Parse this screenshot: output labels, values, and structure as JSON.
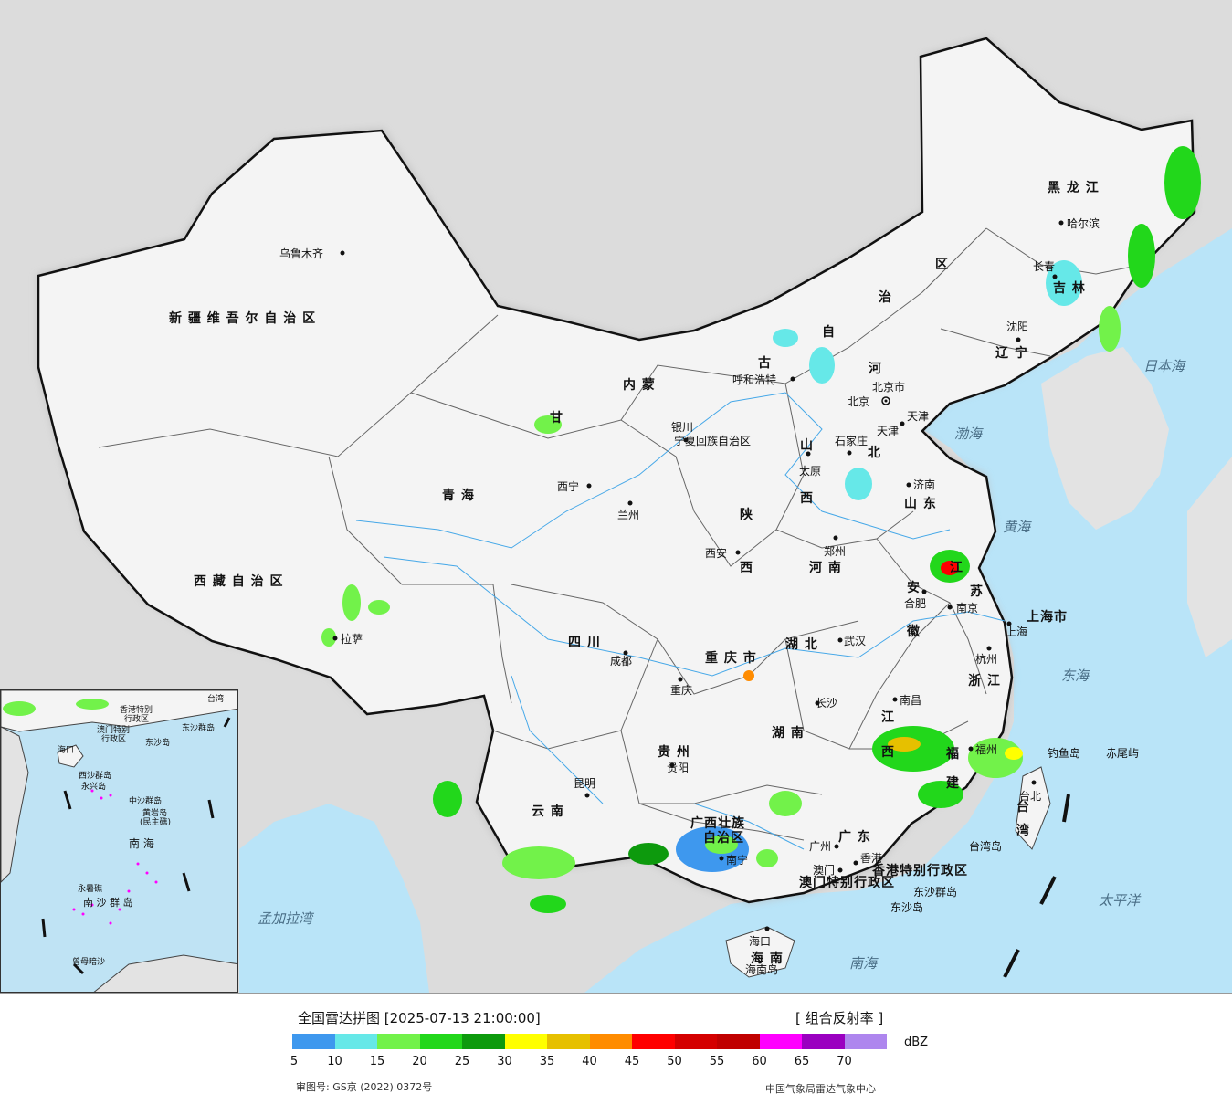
{
  "map": {
    "sea_labels": [
      "日本海",
      "渤海",
      "黄海",
      "东海",
      "太平洋",
      "南海",
      "孟加拉湾"
    ],
    "province_labels": [
      {
        "key": "xinjiang",
        "text": "新 疆 维 吾 尔 自 治 区"
      },
      {
        "key": "xizang",
        "text": "西 藏 自 治 区"
      },
      {
        "key": "qinghai",
        "text": "青           海"
      },
      {
        "key": "gansu",
        "text": "甘"
      },
      {
        "key": "neimenggu1",
        "text": "内       蒙"
      },
      {
        "key": "neimenggu2",
        "text": "古"
      },
      {
        "key": "neimenggu3",
        "text": "自"
      },
      {
        "key": "neimenggu4",
        "text": "治"
      },
      {
        "key": "neimenggu5",
        "text": "区"
      },
      {
        "key": "heilongjiang",
        "text": "黑   龙   江"
      },
      {
        "key": "jilin",
        "text": "吉       林"
      },
      {
        "key": "liaoning",
        "text": "辽   宁"
      },
      {
        "key": "hebei1",
        "text": "河"
      },
      {
        "key": "hebei2",
        "text": "北"
      },
      {
        "key": "shanxi1",
        "text": "山"
      },
      {
        "key": "shanxi2",
        "text": "西"
      },
      {
        "key": "shandong",
        "text": "山   东"
      },
      {
        "key": "henan",
        "text": "河       南"
      },
      {
        "key": "shaanxi1",
        "text": "陕"
      },
      {
        "key": "shaanxi2",
        "text": "西"
      },
      {
        "key": "sichuan",
        "text": "四       川"
      },
      {
        "key": "chongqing",
        "text": "重 庆 市"
      },
      {
        "key": "hubei",
        "text": "湖       北"
      },
      {
        "key": "hunan",
        "text": "湖     南"
      },
      {
        "key": "jiangxi1",
        "text": "江"
      },
      {
        "key": "jiangxi2",
        "text": "西"
      },
      {
        "key": "anhui1",
        "text": "安"
      },
      {
        "key": "anhui2",
        "text": "徽"
      },
      {
        "key": "jiangsu1",
        "text": "江"
      },
      {
        "key": "jiangsu2",
        "text": "苏"
      },
      {
        "key": "zhejiang",
        "text": "浙 江"
      },
      {
        "key": "fujian1",
        "text": "福"
      },
      {
        "key": "fujian2",
        "text": "建"
      },
      {
        "key": "guizhou",
        "text": "贵   州"
      },
      {
        "key": "yunnan",
        "text": "云     南"
      },
      {
        "key": "guangxi1",
        "text": "广西壮族"
      },
      {
        "key": "guangxi2",
        "text": "自治区"
      },
      {
        "key": "guangdong",
        "text": "广   东"
      },
      {
        "key": "hainan",
        "text": "海   南"
      },
      {
        "key": "taiwan1",
        "text": "台"
      },
      {
        "key": "taiwan2",
        "text": "湾"
      },
      {
        "key": "shanghai",
        "text": "上海市"
      },
      {
        "key": "ningxia",
        "text": "宁夏回族自治区"
      },
      {
        "key": "beijing",
        "text": "北京市"
      },
      {
        "key": "tianjin",
        "text": "天津"
      },
      {
        "key": "hk",
        "text": "香港特别行政区"
      },
      {
        "key": "macau",
        "text": "澳门特别行政区"
      }
    ],
    "cities": [
      {
        "key": "urumqi",
        "text": "乌鲁木齐"
      },
      {
        "key": "lhasa",
        "text": "拉萨"
      },
      {
        "key": "xining",
        "text": "西宁"
      },
      {
        "key": "lanzhou",
        "text": "兰州"
      },
      {
        "key": "yinchuan",
        "text": "银川"
      },
      {
        "key": "hohhot",
        "text": "呼和浩特"
      },
      {
        "key": "harbin",
        "text": "哈尔滨"
      },
      {
        "key": "changchun",
        "text": "长春"
      },
      {
        "key": "shenyang",
        "text": "沈阳"
      },
      {
        "key": "beijingc",
        "text": "北京"
      },
      {
        "key": "tianjinc",
        "text": "天津"
      },
      {
        "key": "shijiazhuang",
        "text": "石家庄"
      },
      {
        "key": "taiyuan",
        "text": "太原"
      },
      {
        "key": "jinan",
        "text": "济南"
      },
      {
        "key": "zhengzhou",
        "text": "郑州"
      },
      {
        "key": "xian",
        "text": "西安"
      },
      {
        "key": "chengdu",
        "text": "成都"
      },
      {
        "key": "chongqingc",
        "text": "重庆"
      },
      {
        "key": "wuhan",
        "text": "武汉"
      },
      {
        "key": "hefei",
        "text": "合肥"
      },
      {
        "key": "nanjing",
        "text": "南京"
      },
      {
        "key": "shanghaic",
        "text": "上海"
      },
      {
        "key": "hangzhou",
        "text": "杭州"
      },
      {
        "key": "changsha",
        "text": "长沙"
      },
      {
        "key": "nanchang",
        "text": "南昌"
      },
      {
        "key": "fuzhou",
        "text": "福州"
      },
      {
        "key": "guiyang",
        "text": "贵阳"
      },
      {
        "key": "kunming",
        "text": "昆明"
      },
      {
        "key": "nanning",
        "text": "南宁"
      },
      {
        "key": "guangzhou",
        "text": "广州"
      },
      {
        "key": "xianggang",
        "text": "香港"
      },
      {
        "key": "aomen",
        "text": "澳门"
      },
      {
        "key": "haikou",
        "text": "海口"
      },
      {
        "key": "taibei",
        "text": "台北"
      }
    ],
    "islands": [
      {
        "key": "diaoyu",
        "text": "钓鱼岛"
      },
      {
        "key": "chiwei",
        "text": "赤尾屿"
      },
      {
        "key": "taiwandao",
        "text": "台湾岛"
      },
      {
        "key": "dongsha_qd",
        "text": "东沙群岛"
      },
      {
        "key": "dongsha_d",
        "text": "东沙岛"
      },
      {
        "key": "hainandao",
        "text": "海南岛"
      }
    ],
    "inset_labels": [
      {
        "key": "i_hk",
        "text": "香港特别"
      },
      {
        "key": "i_hk2",
        "text": "行政区"
      },
      {
        "key": "i_mo",
        "text": "澳门特别"
      },
      {
        "key": "i_mo2",
        "text": "行政区"
      },
      {
        "key": "i_tw",
        "text": "台湾"
      },
      {
        "key": "i_dsqd",
        "text": "东沙群岛"
      },
      {
        "key": "i_dsd",
        "text": "东沙岛"
      },
      {
        "key": "i_hk_short",
        "text": "海口"
      },
      {
        "key": "i_xsqd",
        "text": "西沙群岛"
      },
      {
        "key": "i_yongxing",
        "text": "永兴岛"
      },
      {
        "key": "i_zsqd",
        "text": "中沙群岛"
      },
      {
        "key": "i_hy",
        "text": "黄岩岛"
      },
      {
        "key": "i_hy2",
        "text": "(民主礁)"
      },
      {
        "key": "i_nanhai",
        "text": "南   海"
      },
      {
        "key": "i_yongshu",
        "text": "永暑礁"
      },
      {
        "key": "i_nsqd",
        "text": "南 沙 群 岛"
      },
      {
        "key": "i_zengmu",
        "text": "曾母暗沙"
      }
    ]
  },
  "legend": {
    "title": "全国雷达拼图 [2025-07-13 21:00:00]",
    "product": "[ 组合反射率 ]",
    "unit": "dBZ",
    "colors": [
      "#3e98ee",
      "#66e8e8",
      "#72f24a",
      "#22d71b",
      "#0d9a0d",
      "#ffff00",
      "#e6c000",
      "#ff8c00",
      "#ff0000",
      "#d40000",
      "#c00000",
      "#ff00ff",
      "#9a00c0",
      "#ae86ee"
    ],
    "ticks": [
      "5",
      "10",
      "15",
      "20",
      "25",
      "30",
      "35",
      "40",
      "45",
      "50",
      "55",
      "60",
      "65",
      "70"
    ],
    "review_no": "审图号: GS京 (2022) 0372号",
    "organization": "中国气象局雷达气象中心"
  }
}
